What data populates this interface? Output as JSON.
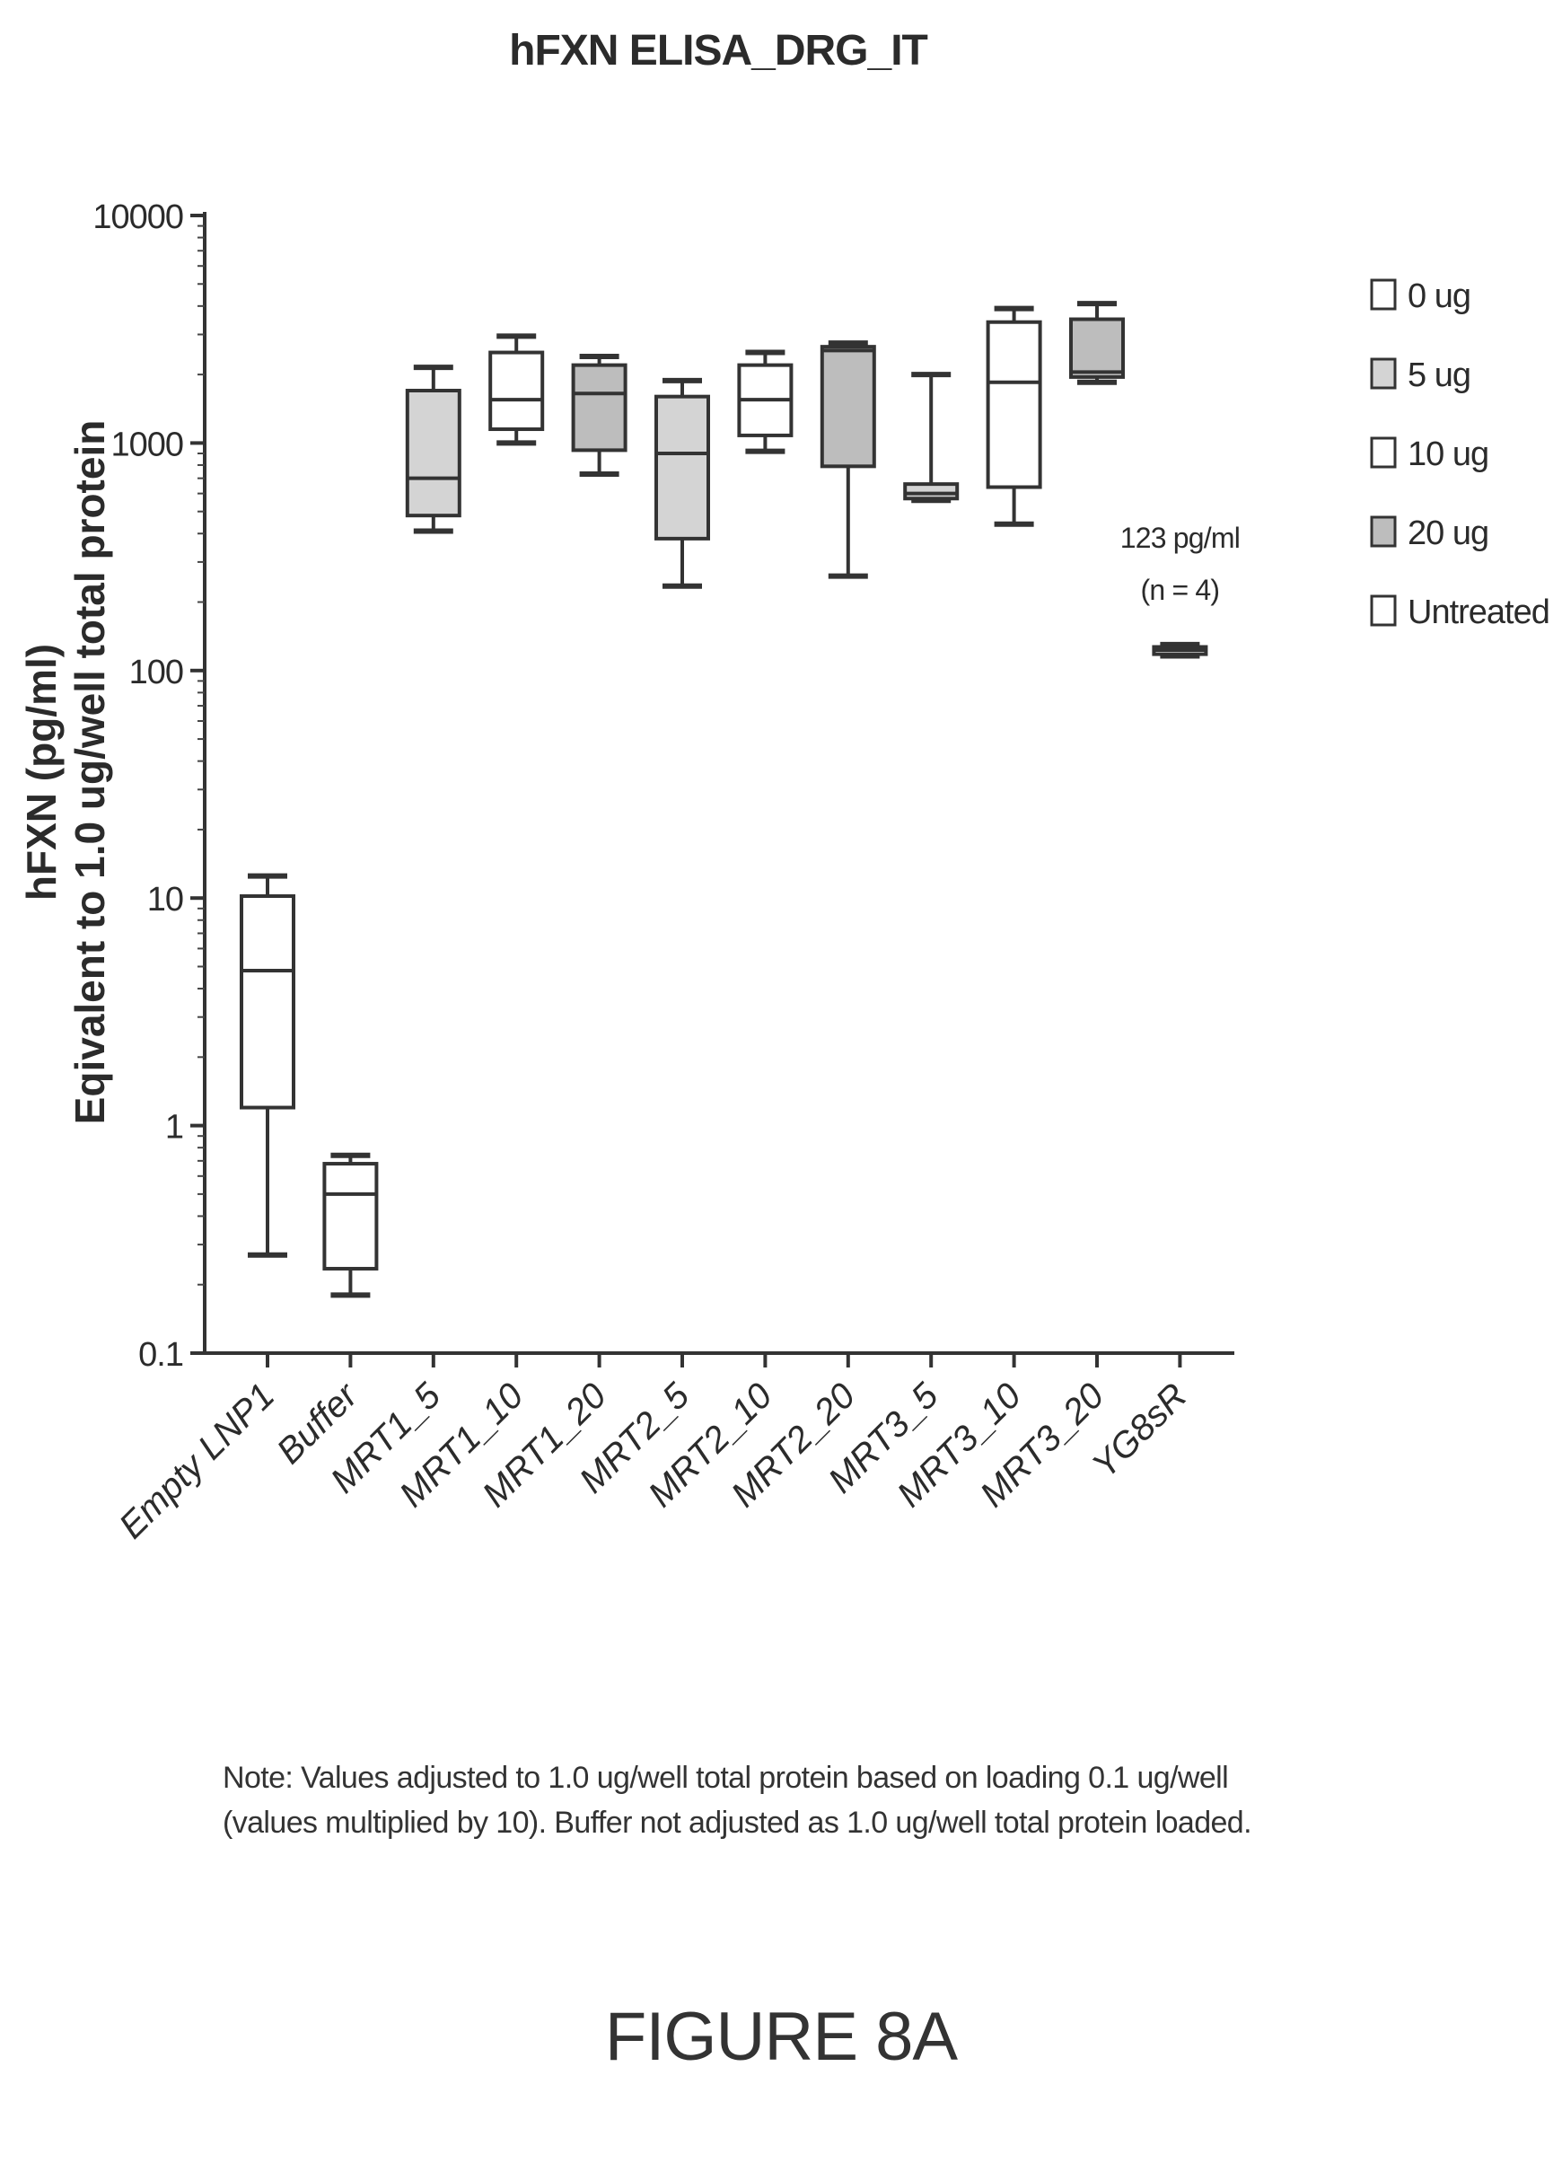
{
  "chart_data": {
    "type": "box",
    "title": "hFXN ELISA_DRG_IT",
    "ylabel_line1": "hFXN (pg/ml)",
    "ylabel_line2": "Eqivalent to 1.0 ug/well total protein",
    "yscale": "log",
    "ylim": [
      0.1,
      10000
    ],
    "yticks": [
      "10000",
      "1000",
      "100",
      "10",
      "1",
      "0.1"
    ],
    "categories": [
      "Empty LNP1",
      "Buffer",
      "MRT1_5",
      "MRT1_10",
      "MRT1_20",
      "MRT2_5",
      "MRT2_10",
      "MRT2_20",
      "MRT3_5",
      "MRT3_10",
      "MRT3_20",
      "YG8sR"
    ],
    "boxes": [
      {
        "min": 0.27,
        "q1": 1.2,
        "median": 4.8,
        "q3": 10.2,
        "max": 12.5,
        "fill": "#ffffff"
      },
      {
        "min": 0.18,
        "q1": 0.235,
        "median": 0.5,
        "q3": 0.68,
        "max": 0.74,
        "fill": "#ffffff"
      },
      {
        "min": 410,
        "q1": 480,
        "median": 700,
        "q3": 1700,
        "max": 2150,
        "fill": "#d4d4d4"
      },
      {
        "min": 1000,
        "q1": 1150,
        "median": 1550,
        "q3": 2500,
        "max": 2950,
        "fill": "#ffffff"
      },
      {
        "min": 730,
        "q1": 930,
        "median": 1650,
        "q3": 2200,
        "max": 2400,
        "fill": "#bdbdbd"
      },
      {
        "min": 235,
        "q1": 380,
        "median": 900,
        "q3": 1600,
        "max": 1880,
        "fill": "#d4d4d4"
      },
      {
        "min": 920,
        "q1": 1080,
        "median": 1550,
        "q3": 2200,
        "max": 2500,
        "fill": "#ffffff"
      },
      {
        "min": 260,
        "q1": 790,
        "median": 2550,
        "q3": 2650,
        "max": 2750,
        "fill": "#bdbdbd"
      },
      {
        "min": 560,
        "q1": 570,
        "median": 600,
        "q3": 660,
        "max": 2000,
        "fill": "#d4d4d4"
      },
      {
        "min": 440,
        "q1": 640,
        "median": 1850,
        "q3": 3400,
        "max": 3900,
        "fill": "#ffffff"
      },
      {
        "min": 1850,
        "q1": 1950,
        "median": 2050,
        "q3": 3500,
        "max": 4100,
        "fill": "#bdbdbd"
      },
      {
        "min": 116,
        "q1": 118,
        "median": 123,
        "q3": 127,
        "max": 130,
        "fill": "#ffffff"
      }
    ],
    "annotation": {
      "line1": "123 pg/ml",
      "line2": "(n = 4)",
      "category": "YG8sR"
    },
    "legend": {
      "position": "right",
      "entries": [
        {
          "label": "0 ug",
          "fill": "#ffffff"
        },
        {
          "label": "5 ug",
          "fill": "#d4d4d4"
        },
        {
          "label": "10 ug",
          "fill": "#ffffff"
        },
        {
          "label": "20 ug",
          "fill": "#bdbdbd"
        },
        {
          "label": "Untreated",
          "fill": "#ffffff"
        }
      ]
    }
  },
  "note": "Note: Values adjusted to 1.0 ug/well total protein based on loading 0.1 ug/well (values multiplied by 10). Buffer not adjusted as 1.0 ug/well total protein loaded.",
  "figure_label": "FIGURE 8A"
}
